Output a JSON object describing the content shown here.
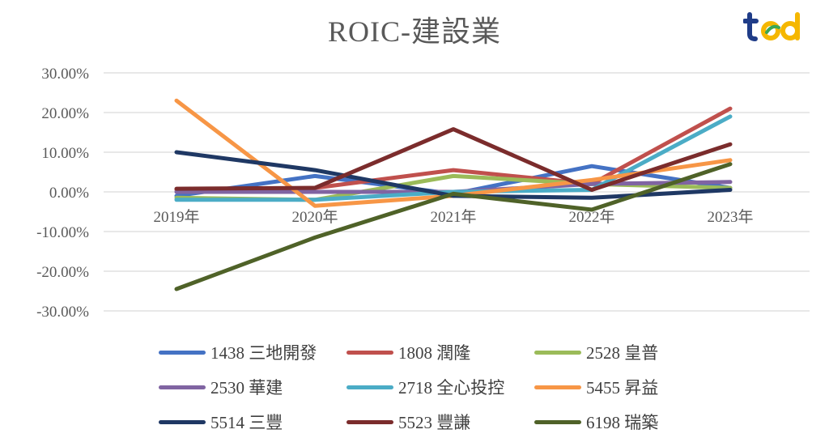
{
  "logo": {
    "icon": "ted-logo",
    "text": "ted",
    "colors": [
      "#1f3c88",
      "#f5b700",
      "#3aa655"
    ]
  },
  "chart_data": {
    "type": "line",
    "title": "ROIC-建設業",
    "xlabel": "",
    "ylabel": "",
    "categories": [
      "2019年",
      "2020年",
      "2021年",
      "2022年",
      "2023年"
    ],
    "yticks": [
      "30.00%",
      "20.00%",
      "10.00%",
      "0.00%",
      "-10.00%",
      "-20.00%",
      "-30.00%"
    ],
    "ylim": [
      -0.3,
      0.3
    ],
    "grid": true,
    "legend_position": "bottom",
    "series": [
      {
        "name": "1438 三地開發",
        "color": "#4472c4",
        "values": [
          -0.01,
          0.04,
          -0.005,
          0.065,
          0.01
        ]
      },
      {
        "name": "1808 潤隆",
        "color": "#c0504d",
        "values": [
          0.005,
          0.01,
          0.055,
          0.02,
          0.21
        ]
      },
      {
        "name": "2528 皇普",
        "color": "#9bbb59",
        "values": [
          -0.015,
          -0.02,
          0.04,
          0.02,
          0.01
        ]
      },
      {
        "name": "2530 華建",
        "color": "#8064a2",
        "values": [
          0.0,
          0.0,
          0.0,
          0.02,
          0.025
        ]
      },
      {
        "name": "2718 全心投控",
        "color": "#4bacc6",
        "values": [
          -0.02,
          -0.02,
          0.0,
          0.005,
          0.19
        ]
      },
      {
        "name": "5455 昇益",
        "color": "#f79646",
        "values": [
          0.23,
          -0.035,
          -0.01,
          0.03,
          0.08
        ]
      },
      {
        "name": "5514 三豐",
        "color": "#1f3864",
        "values": [
          0.1,
          0.055,
          -0.01,
          -0.015,
          0.005
        ]
      },
      {
        "name": "5523 豐謙",
        "color": "#7b2c2c",
        "values": [
          0.008,
          0.01,
          0.158,
          0.005,
          0.12
        ]
      },
      {
        "name": "6198 瑞築",
        "color": "#4f6228",
        "values": [
          -0.245,
          -0.115,
          -0.005,
          -0.045,
          0.07
        ]
      }
    ]
  }
}
